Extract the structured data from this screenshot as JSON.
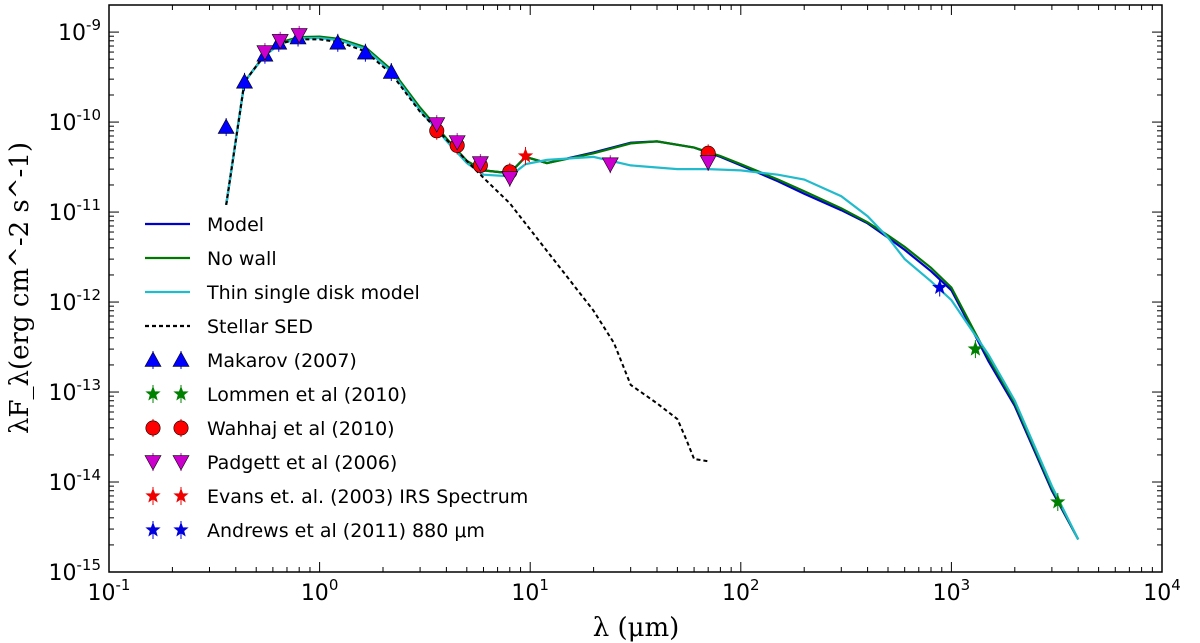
{
  "chart_data": {
    "type": "scatter",
    "title": "",
    "xlabel": "λ (μm)",
    "ylabel": "λF_λ(erg cm^-2 s^-1)",
    "xscale": "log",
    "yscale": "log",
    "xlim": [
      0.1,
      10000
    ],
    "ylim": [
      1e-15,
      2e-09
    ],
    "x_ticks": [
      {
        "v": 0.1,
        "m": "10",
        "e": "-1"
      },
      {
        "v": 1,
        "m": "10",
        "e": "0"
      },
      {
        "v": 10,
        "m": "10",
        "e": "1"
      },
      {
        "v": 100,
        "m": "10",
        "e": "2"
      },
      {
        "v": 1000,
        "m": "10",
        "e": "3"
      },
      {
        "v": 10000,
        "m": "10",
        "e": "4"
      }
    ],
    "y_ticks": [
      {
        "v": 1e-15,
        "m": "10",
        "e": "-15"
      },
      {
        "v": 1e-14,
        "m": "10",
        "e": "-14"
      },
      {
        "v": 1e-13,
        "m": "10",
        "e": "-13"
      },
      {
        "v": 1e-12,
        "m": "10",
        "e": "-12"
      },
      {
        "v": 1e-11,
        "m": "10",
        "e": "-11"
      },
      {
        "v": 1e-10,
        "m": "10",
        "e": "-10"
      },
      {
        "v": 1e-09,
        "m": "10",
        "e": "-9"
      }
    ],
    "legend_position": "lower-left",
    "lines": [
      {
        "name": "Model",
        "color": "#0000cc",
        "style": "solid",
        "x": [
          0.36,
          0.44,
          0.55,
          0.65,
          0.8,
          1.0,
          1.25,
          1.65,
          2.2,
          3.0,
          4.0,
          5.0,
          6.0,
          8.0,
          9.5,
          12,
          20,
          30,
          40,
          60,
          80,
          100,
          150,
          200,
          300,
          400,
          500,
          600,
          800,
          1000,
          1300,
          1500,
          2000,
          3000,
          4000
        ],
        "y": [
          1.2e-11,
          2.8e-10,
          5.6e-10,
          7.6e-10,
          8.6e-10,
          8.7e-10,
          8.2e-10,
          6.6e-10,
          3.7e-10,
          1.4e-10,
          6.5e-11,
          3.7e-11,
          2.9e-11,
          2.7e-11,
          4.1e-11,
          3.5e-11,
          4.6e-11,
          5.9e-11,
          6.1e-11,
          5.2e-11,
          4.1e-11,
          3.3e-11,
          2.2e-11,
          1.6e-11,
          1.05e-11,
          7.5e-12,
          5.2e-12,
          3.8e-12,
          2.2e-12,
          1.35e-12,
          4.2e-13,
          2.2e-13,
          7e-14,
          8e-15,
          2.3e-15
        ]
      },
      {
        "name": "No wall",
        "color": "#007700",
        "style": "solid",
        "x": [
          0.36,
          0.44,
          0.55,
          0.65,
          0.8,
          1.0,
          1.25,
          1.65,
          2.2,
          3.0,
          4.0,
          5.0,
          6.0,
          8.0,
          9.5,
          12,
          20,
          30,
          40,
          60,
          80,
          100,
          150,
          200,
          300,
          400,
          500,
          600,
          800,
          1000,
          1300,
          1500,
          2000,
          3000,
          4000
        ],
        "y": [
          1.2e-11,
          2.8e-10,
          5.6e-10,
          7.7e-10,
          8.8e-10,
          8.9e-10,
          8.4e-10,
          6.8e-10,
          3.8e-10,
          1.45e-10,
          6.6e-11,
          3.7e-11,
          2.9e-11,
          2.7e-11,
          4.1e-11,
          3.5e-11,
          4.5e-11,
          5.8e-11,
          6.1e-11,
          5.2e-11,
          4.2e-11,
          3.4e-11,
          2.3e-11,
          1.7e-11,
          1.1e-11,
          7.7e-12,
          5.5e-12,
          4.1e-12,
          2.4e-12,
          1.45e-12,
          4.5e-13,
          2.4e-13,
          7.5e-14,
          8.5e-15,
          2.3e-15
        ]
      },
      {
        "name": "Thin single disk model",
        "color": "#22bbcc",
        "style": "solid",
        "x": [
          0.36,
          0.44,
          0.55,
          0.65,
          0.8,
          1.0,
          1.25,
          1.65,
          2.2,
          3.0,
          4.0,
          5.0,
          6.0,
          8.0,
          9.5,
          12,
          20,
          30,
          50,
          70,
          100,
          150,
          200,
          300,
          400,
          500,
          600,
          800,
          1000,
          1500,
          2000,
          3000,
          4000
        ],
        "y": [
          1.2e-11,
          2.8e-10,
          5.5e-10,
          7.4e-10,
          8.5e-10,
          8.6e-10,
          8.1e-10,
          6.5e-10,
          3.6e-10,
          1.35e-10,
          6.2e-11,
          3.5e-11,
          2.6e-11,
          2.5e-11,
          3.4e-11,
          3.8e-11,
          4.1e-11,
          3.3e-11,
          3e-11,
          3e-11,
          2.9e-11,
          2.6e-11,
          2.3e-11,
          1.5e-11,
          9e-12,
          5.2e-12,
          3e-12,
          1.7e-12,
          1.05e-12,
          2.6e-13,
          8e-14,
          9e-15,
          2.3e-15
        ]
      },
      {
        "name": "Stellar SED",
        "color": "#000000",
        "style": "dashed",
        "x": [
          0.36,
          0.44,
          0.55,
          0.65,
          0.8,
          1.0,
          1.25,
          1.65,
          2.2,
          3.0,
          4.0,
          5.0,
          6.0,
          8.0,
          10,
          15,
          20,
          25,
          30,
          40,
          50,
          55,
          60,
          70
        ],
        "y": [
          1.2e-11,
          2.8e-10,
          5.6e-10,
          7.5e-10,
          8.3e-10,
          8.3e-10,
          7.7e-10,
          6.1e-10,
          3.4e-10,
          1.3e-10,
          6.4e-11,
          3.7e-11,
          2.4e-11,
          1.25e-11,
          6.4e-12,
          1.9e-12,
          8e-13,
          3.5e-13,
          1.2e-13,
          7.5e-14,
          5e-14,
          3e-14,
          1.8e-14,
          1.7e-14
        ]
      }
    ],
    "series": [
      {
        "name": "Makarov (2007)",
        "color": "#0000ff",
        "marker": "triangle-up",
        "x": [
          0.36,
          0.44,
          0.55,
          0.64,
          0.79,
          1.22,
          1.65,
          2.19
        ],
        "y": [
          8.8e-11,
          2.8e-10,
          5.6e-10,
          7.6e-10,
          8.7e-10,
          7.6e-10,
          5.9e-10,
          3.6e-10
        ]
      },
      {
        "name": "Lommen et al (2010)",
        "color": "#008000",
        "marker": "star",
        "x": [
          1300,
          3200
        ],
        "y": [
          3e-13,
          6e-15
        ]
      },
      {
        "name": "Wahhaj et al (2010)",
        "color": "#ff0000",
        "marker": "circle",
        "x": [
          3.6,
          4.5,
          5.8,
          8.0,
          70
        ],
        "y": [
          8e-11,
          5.5e-11,
          3.3e-11,
          2.8e-11,
          4.5e-11
        ]
      },
      {
        "name": "Padgett et al (2006)",
        "color": "#cc00cc",
        "marker": "triangle-down",
        "x": [
          0.55,
          0.65,
          0.8,
          3.6,
          4.5,
          5.8,
          8.0,
          24,
          70
        ],
        "y": [
          6e-10,
          8e-10,
          9.3e-10,
          9.5e-11,
          6e-11,
          3.5e-11,
          2.4e-11,
          3.4e-11,
          3.6e-11
        ]
      },
      {
        "name": "Evans et. al. (2003) IRS Spectrum",
        "color": "#ee0000",
        "marker": "star",
        "x": [
          9.5
        ],
        "y": [
          4.2e-11
        ]
      },
      {
        "name": "Andrews et al (2011) 880 μm",
        "color": "#0000dd",
        "marker": "star",
        "x": [
          880
        ],
        "y": [
          1.45e-12
        ]
      }
    ]
  }
}
